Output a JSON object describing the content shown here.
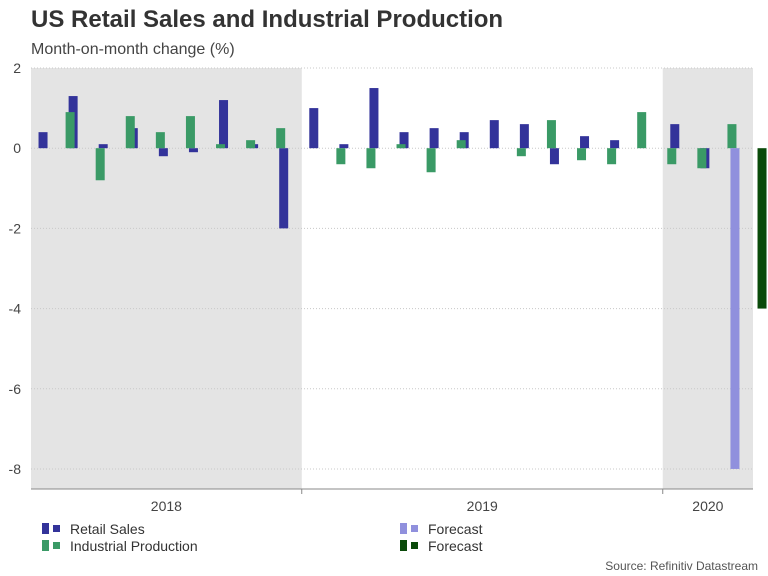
{
  "chart_data": {
    "type": "bar",
    "title": "US Retail Sales and Industrial Production",
    "subtitle": "Month-on-month change (%)",
    "ylim": [
      -8.5,
      2
    ],
    "yticks": [
      2,
      0,
      -2,
      -4,
      -6,
      -8
    ],
    "year_labels": [
      {
        "label": "2018",
        "start": 0,
        "end": 9
      },
      {
        "label": "2019",
        "start": 9,
        "end": 21
      },
      {
        "label": "2020",
        "start": 21,
        "end": 24
      }
    ],
    "shaded_groups": [
      [
        0,
        9
      ],
      [
        21,
        24
      ]
    ],
    "series": [
      {
        "name": "Retail Sales",
        "color": "#33339a",
        "values": [
          0.4,
          1.3,
          0.1,
          0.5,
          -0.2,
          -0.1,
          1.2,
          0.1,
          -2.0,
          1.0,
          0.1,
          1.5,
          0.4,
          0.5,
          0.4,
          0.7,
          0.6,
          -0.4,
          0.3,
          0.2,
          0.0,
          0.6,
          -0.5,
          null
        ]
      },
      {
        "name": "Industrial Production",
        "color": "#3a9a66",
        "values": [
          0.9,
          -0.8,
          0.8,
          0.4,
          0.8,
          0.1,
          0.2,
          0.5,
          0.0,
          -0.4,
          -0.5,
          0.1,
          -0.6,
          0.2,
          0.0,
          -0.2,
          0.7,
          -0.3,
          -0.4,
          0.9,
          -0.4,
          -0.5,
          0.6,
          null
        ]
      },
      {
        "name": "Forecast",
        "color": "#9090dd",
        "values": [
          null,
          null,
          null,
          null,
          null,
          null,
          null,
          null,
          null,
          null,
          null,
          null,
          null,
          null,
          null,
          null,
          null,
          null,
          null,
          null,
          null,
          null,
          null,
          -8.0
        ]
      },
      {
        "name": "Forecast",
        "color": "#0a4a0a",
        "values": [
          null,
          null,
          null,
          null,
          null,
          null,
          null,
          null,
          null,
          null,
          null,
          null,
          null,
          null,
          null,
          null,
          null,
          null,
          null,
          null,
          null,
          null,
          null,
          -4.0
        ]
      }
    ],
    "grid": true,
    "legend": "bottom",
    "source": "Source: Refinitiv Datastream"
  },
  "legend_items": [
    {
      "label": "Retail Sales",
      "color": "#33339a"
    },
    {
      "label": "Industrial Production",
      "color": "#3a9a66"
    },
    {
      "label": "Forecast",
      "color": "#9090dd"
    },
    {
      "label": "Forecast",
      "color": "#0a4a0a"
    }
  ]
}
